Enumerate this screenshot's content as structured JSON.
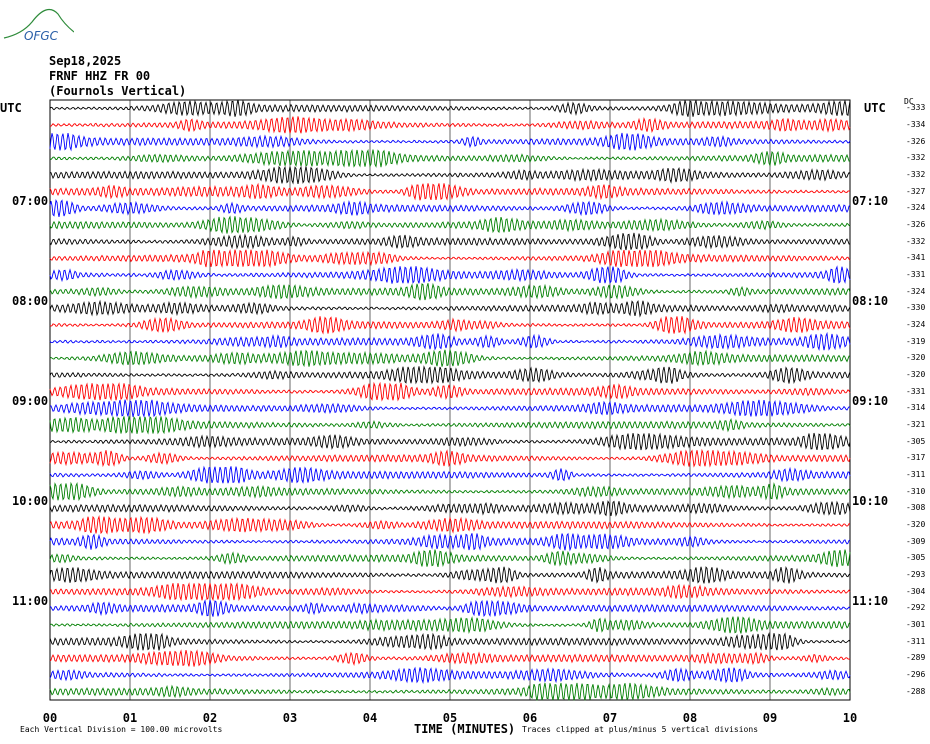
{
  "logo": {
    "text": "OFGC"
  },
  "header": {
    "date": "Sep18,2025",
    "station": "FRNF HHZ FR 00",
    "location": "(Fournols Vertical)"
  },
  "left_utc_label": "UTC",
  "right_utc_label": "UTC",
  "dc_label": "DC",
  "footer": {
    "scale_note": "Each Vertical Division =  100.00 microvolts",
    "x_title": "TIME (MINUTES)",
    "clip_note": "Traces clipped at plus/minus 5 vertical divisions"
  },
  "chart_data": {
    "type": "line",
    "title": "",
    "xlabel": "TIME (MINUTES)",
    "xlim": [
      0,
      10
    ],
    "x_ticks": [
      "00",
      "01",
      "02",
      "03",
      "04",
      "05",
      "06",
      "07",
      "08",
      "09",
      "10"
    ],
    "trace_colors": [
      "#000000",
      "#ff0000",
      "#0000ff",
      "#007f00"
    ],
    "left_hour_labels": [
      {
        "row": 6,
        "text": "07:00"
      },
      {
        "row": 12,
        "text": "08:00"
      },
      {
        "row": 18,
        "text": "09:00"
      },
      {
        "row": 24,
        "text": "10:00"
      },
      {
        "row": 30,
        "text": "11:00"
      }
    ],
    "right_hour_labels": [
      {
        "row": 6,
        "text": "07:10"
      },
      {
        "row": 12,
        "text": "08:10"
      },
      {
        "row": 18,
        "text": "09:10"
      },
      {
        "row": 24,
        "text": "10:10"
      },
      {
        "row": 30,
        "text": "11:10"
      }
    ],
    "dc_offsets": [
      "-333",
      "-334",
      "-326",
      "-332",
      "-332",
      "-327",
      "-324",
      "-326",
      "-332",
      "-341",
      "-331",
      "-324",
      "-330",
      "-324",
      "-319",
      "-320",
      "-320",
      "-331",
      "-314",
      "-321",
      "-305",
      "-317",
      "-311",
      "-310",
      "-308",
      "-320",
      "-309",
      "-305",
      "-293",
      "-304",
      "-292",
      "-301",
      "-311",
      "-289",
      "-296",
      "-288"
    ]
  }
}
